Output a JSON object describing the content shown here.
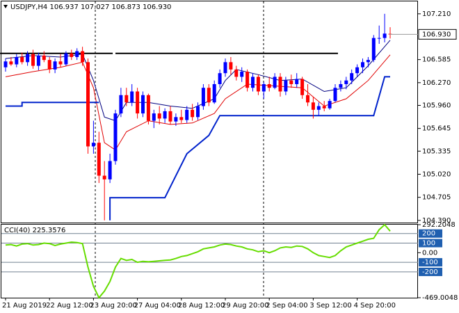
{
  "chart_data": [
    {
      "type": "candlestick",
      "title": "USDJPY,H4 106.937 107.027 106.873 106.930",
      "open": [
        106.48,
        106.56,
        106.52,
        106.62,
        106.55,
        106.66,
        106.5,
        106.64,
        106.58,
        106.45,
        106.56,
        106.52,
        106.67,
        106.62,
        106.7,
        106.55,
        105.4,
        105.45,
        105.0,
        104.95,
        105.2,
        105.85,
        106.1,
        106.0,
        106.15,
        105.85,
        106.1,
        105.75,
        105.85,
        105.78,
        105.88,
        105.74,
        105.8,
        105.76,
        105.9,
        105.8,
        105.95,
        106.2,
        106.0,
        106.25,
        106.4,
        106.55,
        106.45,
        106.35,
        106.42,
        106.2,
        106.35,
        106.15,
        106.25,
        106.2,
        106.35,
        106.15,
        106.3,
        106.25,
        106.32,
        106.1,
        106.0,
        105.9,
        105.95,
        105.92,
        106.02,
        106.2,
        106.25,
        106.3,
        106.4,
        106.48,
        106.55,
        106.58,
        106.88,
        106.88,
        106.937
      ],
      "high": [
        106.6,
        106.62,
        106.66,
        106.68,
        106.7,
        106.72,
        106.68,
        106.7,
        106.62,
        106.6,
        106.66,
        106.7,
        106.72,
        106.74,
        106.76,
        106.6,
        105.75,
        105.6,
        105.2,
        105.3,
        105.9,
        106.2,
        106.2,
        106.25,
        106.2,
        106.15,
        106.12,
        105.9,
        105.95,
        105.92,
        105.95,
        105.85,
        105.9,
        105.95,
        105.98,
        106.0,
        106.25,
        106.25,
        106.3,
        106.45,
        106.6,
        106.62,
        106.5,
        106.48,
        106.45,
        106.4,
        106.38,
        106.28,
        106.35,
        106.4,
        106.4,
        106.35,
        106.38,
        106.4,
        106.35,
        106.25,
        106.08,
        106.0,
        106.02,
        106.05,
        106.25,
        106.3,
        106.35,
        106.45,
        106.52,
        106.6,
        106.62,
        106.92,
        107.05,
        107.21,
        107.027
      ],
      "low": [
        106.42,
        106.5,
        106.48,
        106.52,
        106.5,
        106.46,
        106.44,
        106.55,
        106.4,
        106.4,
        106.48,
        106.5,
        106.58,
        106.58,
        106.5,
        105.3,
        105.3,
        104.9,
        104.39,
        104.9,
        105.15,
        105.8,
        105.95,
        105.95,
        105.78,
        105.8,
        105.7,
        105.65,
        105.7,
        105.72,
        105.7,
        105.68,
        105.72,
        105.72,
        105.75,
        105.76,
        105.9,
        105.95,
        105.98,
        106.2,
        106.35,
        106.38,
        106.3,
        106.28,
        106.15,
        106.15,
        106.1,
        106.05,
        106.15,
        106.18,
        106.08,
        106.1,
        106.2,
        106.2,
        106.05,
        105.95,
        105.78,
        105.82,
        105.88,
        105.9,
        106.0,
        106.15,
        106.18,
        106.25,
        106.35,
        106.4,
        106.48,
        106.55,
        106.8,
        106.82,
        106.873
      ],
      "close": [
        106.56,
        106.52,
        106.62,
        106.55,
        106.66,
        106.5,
        106.64,
        106.58,
        106.45,
        106.56,
        106.52,
        106.67,
        106.62,
        106.7,
        106.55,
        105.4,
        105.45,
        105.0,
        104.95,
        105.2,
        105.85,
        106.1,
        106.0,
        106.15,
        105.85,
        106.1,
        105.75,
        105.85,
        105.78,
        105.88,
        105.74,
        105.8,
        105.76,
        105.9,
        105.8,
        105.95,
        106.2,
        106.0,
        106.25,
        106.4,
        106.55,
        106.45,
        106.35,
        106.42,
        106.2,
        106.35,
        106.15,
        106.25,
        106.2,
        106.35,
        106.15,
        106.3,
        106.25,
        106.32,
        106.1,
        106.0,
        105.9,
        105.95,
        105.92,
        106.02,
        106.2,
        106.25,
        106.3,
        106.4,
        106.48,
        106.55,
        106.58,
        106.88,
        106.88,
        106.94,
        106.93
      ],
      "up_color": "#0000ff",
      "down_color": "#ff0000",
      "lines": [
        {
          "color": "#000080",
          "x": [
            0,
            5,
            10,
            14,
            16,
            18,
            20,
            22,
            26,
            30,
            34,
            38,
            40,
            42,
            46,
            50,
            54,
            58,
            62,
            66,
            70
          ],
          "values": [
            106.6,
            106.64,
            106.62,
            106.66,
            106.3,
            105.8,
            105.75,
            106.0,
            106.0,
            105.95,
            105.92,
            106.05,
            106.3,
            106.45,
            106.38,
            106.3,
            106.32,
            106.15,
            106.2,
            106.5,
            106.85
          ]
        },
        {
          "color": "#e00000",
          "x": [
            0,
            5,
            10,
            14,
            16,
            18,
            20,
            22,
            26,
            30,
            34,
            38,
            40,
            44,
            50,
            54,
            58,
            62,
            66,
            70
          ],
          "values": [
            106.35,
            106.42,
            106.48,
            106.55,
            106.2,
            105.45,
            105.35,
            105.6,
            105.75,
            105.7,
            105.72,
            105.85,
            106.05,
            106.25,
            106.22,
            106.2,
            105.95,
            106.05,
            106.3,
            106.65
          ]
        },
        {
          "color": "#0022cc",
          "width": 2,
          "x": [
            0,
            3,
            3,
            17,
            17,
            19,
            19,
            29,
            33,
            37,
            39,
            67,
            69,
            70
          ],
          "values": [
            105.95,
            105.95,
            106.0,
            106.0,
            null,
            104.39,
            104.7,
            104.7,
            105.3,
            105.55,
            105.82,
            105.82,
            106.35,
            106.35
          ]
        }
      ],
      "levels": [
        {
          "value": 106.67,
          "from": -1,
          "to": 19.5
        },
        {
          "value": 106.67,
          "from": 20,
          "to": 60.5
        }
      ],
      "current_price": {
        "value": 106.93,
        "label": "106.930"
      },
      "ylim": [
        104.36,
        107.37
      ],
      "yticks": [
        {
          "value": 107.21,
          "label": "107.210"
        },
        {
          "value": 106.585,
          "label": "106.585"
        },
        {
          "value": 106.27,
          "label": "106.270"
        },
        {
          "value": 105.96,
          "label": "105.960"
        },
        {
          "value": 105.645,
          "label": "105.645"
        },
        {
          "value": 105.335,
          "label": "105.335"
        },
        {
          "value": 105.02,
          "label": "105.020"
        },
        {
          "value": 104.705,
          "label": "104.705"
        },
        {
          "value": 104.39,
          "label": "104.390"
        }
      ],
      "xticks": [
        {
          "value": 0,
          "label": "21 Aug 2019"
        },
        {
          "value": 8,
          "label": "22 Aug 12:00"
        },
        {
          "value": 16,
          "label": "23 Aug 20:00"
        },
        {
          "value": 24,
          "label": "27 Aug 04:00"
        },
        {
          "value": 32,
          "label": "28 Aug 12:00"
        },
        {
          "value": 40,
          "label": "29 Aug 20:00"
        },
        {
          "value": 48,
          "label": "2 Sep 04:00"
        },
        {
          "value": 56,
          "label": "3 Sep 12:00"
        },
        {
          "value": 64,
          "label": "4 Sep 20:00"
        }
      ]
    },
    {
      "type": "line",
      "title": "CCI(40) 225.3576",
      "color": "#66dd00",
      "values": [
        80,
        85,
        70,
        90,
        95,
        80,
        85,
        100,
        95,
        75,
        90,
        100,
        110,
        105,
        95,
        -150,
        -350,
        -469,
        -400,
        -300,
        -150,
        -60,
        -80,
        -70,
        -100,
        -90,
        -95,
        -90,
        -85,
        -80,
        -75,
        -60,
        -40,
        -30,
        -10,
        10,
        40,
        50,
        60,
        80,
        90,
        85,
        70,
        60,
        40,
        30,
        10,
        20,
        0,
        20,
        50,
        60,
        55,
        70,
        65,
        40,
        0,
        -30,
        -40,
        -50,
        -30,
        20,
        60,
        80,
        100,
        120,
        140,
        150,
        240,
        292,
        225
      ],
      "levels": [
        200,
        100,
        -100,
        -200
      ],
      "ylim": [
        -469.0048,
        292.2048
      ],
      "yticks": [
        292.2048,
        {
          "value": 0,
          "label": "0.00"
        },
        -469.0048
      ]
    }
  ]
}
